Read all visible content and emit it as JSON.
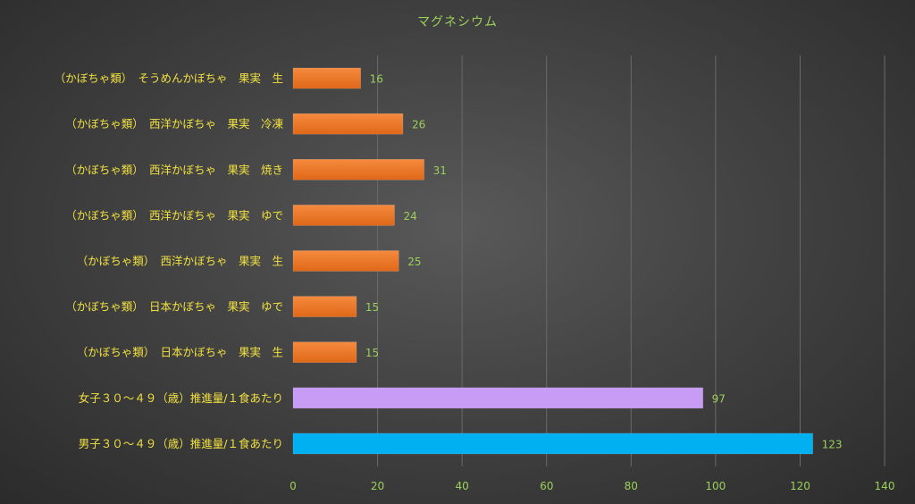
{
  "chart_data": {
    "type": "bar",
    "orientation": "horizontal",
    "title": "マグネシウム",
    "categories": [
      "（かぼちゃ類）　そうめんかぼちゃ　果実　生",
      "（かぼちゃ類）　西洋かぼちゃ　果実　冷凍",
      "（かぼちゃ類）　西洋かぼちゃ　果実　焼き",
      "（かぼちゃ類）　西洋かぼちゃ　果実　ゆで",
      "（かぼちゃ類）　西洋かぼちゃ　果実　生",
      "（かぼちゃ類）　日本かぼちゃ　果実　ゆで",
      "（かぼちゃ類）　日本かぼちゃ　果実　生",
      "女子３０～４９（歳）推進量/１食あたり",
      "男子３０～４９（歳）推進量/１食あたり"
    ],
    "values": [
      16,
      26,
      31,
      24,
      25,
      15,
      15,
      97,
      123
    ],
    "bar_colors": [
      "#f07a2a",
      "#f07a2a",
      "#f07a2a",
      "#f07a2a",
      "#f07a2a",
      "#f07a2a",
      "#f07a2a",
      "#c89bf5",
      "#00b0f0"
    ],
    "xlim": [
      0,
      140
    ],
    "xticks": [
      0,
      20,
      40,
      60,
      80,
      100,
      120,
      140
    ],
    "xlabel": "",
    "ylabel": "",
    "grid": true,
    "colors": {
      "title": "#9bd05a",
      "category_label": "#f0e040",
      "tick_label": "#9bd05a",
      "data_label": "#9bd05a",
      "gridline": "#6a6a6a"
    }
  }
}
